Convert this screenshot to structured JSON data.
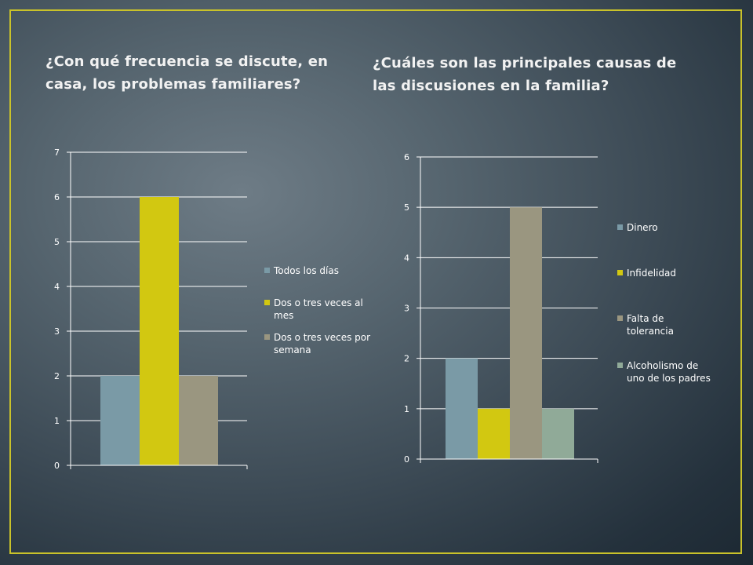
{
  "slide": {
    "title_left": "¿Con qué frecuencia se discute, en casa, los problemas familiares?",
    "title_right": "¿Cuáles son las principales causas de las discusiones en la familia?",
    "frame_color": "#c9c22a"
  },
  "chart_data": [
    {
      "type": "bar",
      "title": "",
      "categories": [
        ""
      ],
      "series": [
        {
          "name": "Todos los  días",
          "values": [
            2
          ],
          "color": "#7a9aa6"
        },
        {
          "name": "Dos o tres veces al mes",
          "values": [
            6
          ],
          "color": "#d2c811"
        },
        {
          "name": "Dos o tres veces por semana",
          "values": [
            2
          ],
          "color": "#9a9680"
        }
      ],
      "ylim": [
        0,
        7
      ],
      "yticks": [
        "0",
        "1",
        "2",
        "3",
        "4",
        "5",
        "6",
        "7"
      ],
      "grid": true,
      "legend": "right"
    },
    {
      "type": "bar",
      "title": "",
      "categories": [
        ""
      ],
      "series": [
        {
          "name": "Dinero",
          "values": [
            2
          ],
          "color": "#7a9aa6"
        },
        {
          "name": "Infidelidad",
          "values": [
            1
          ],
          "color": "#d2c811"
        },
        {
          "name": "Falta de tolerancia",
          "values": [
            5
          ],
          "color": "#9a9680"
        },
        {
          "name": "Alcoholismo de uno de los padres",
          "values": [
            1
          ],
          "color": "#90aa98"
        }
      ],
      "ylim": [
        0,
        6
      ],
      "yticks": [
        "0",
        "1",
        "2",
        "3",
        "4",
        "5",
        "6"
      ],
      "grid": true,
      "legend": "right"
    }
  ]
}
